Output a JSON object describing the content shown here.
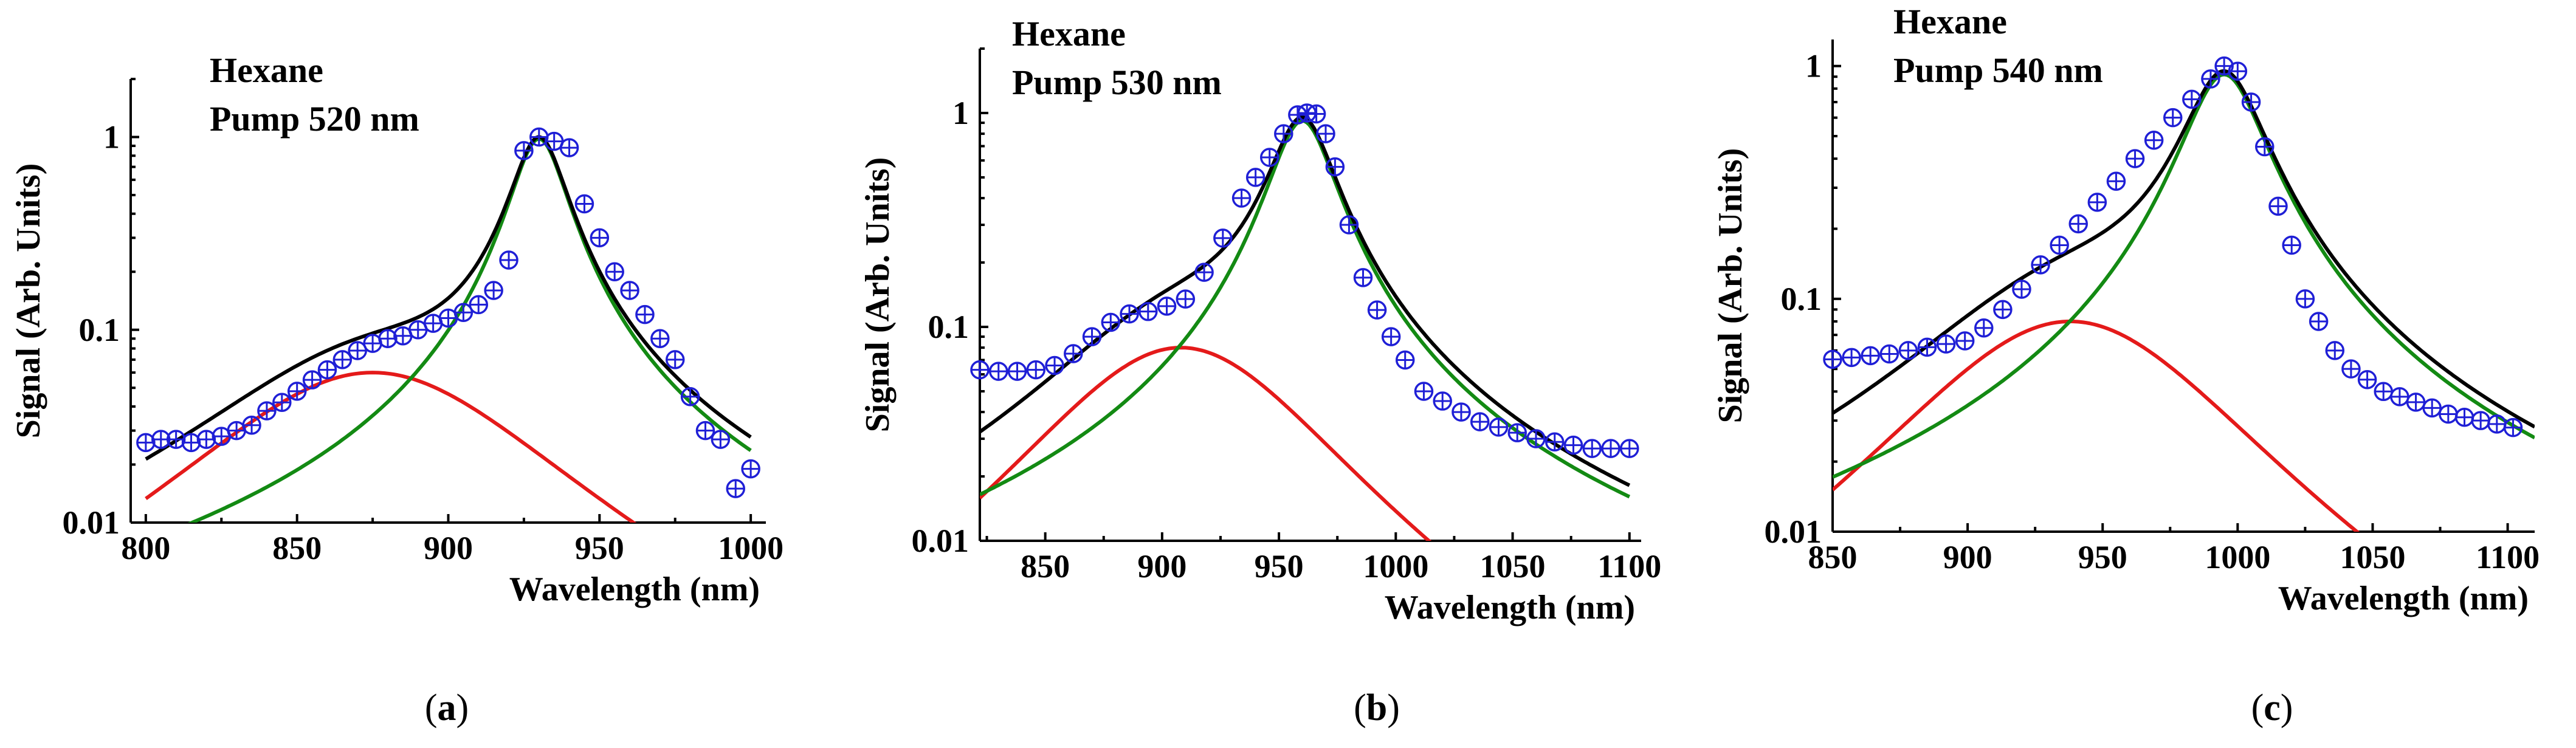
{
  "colors": {
    "data": "#1f1fd6",
    "total_fit": "#000000",
    "red_fit": "#e41a1a",
    "green_fit": "#138a13"
  },
  "chart_data": [
    {
      "type": "scatter",
      "panel_label": "a",
      "annotation": [
        "Hexane",
        "Pump 520 nm"
      ],
      "xlabel": "Wavelength (nm)",
      "ylabel": "Signal (Arb. Units)",
      "xlim": [
        795,
        1005
      ],
      "ylim": [
        0.01,
        2.0
      ],
      "yscale": "log",
      "xticks": [
        800,
        850,
        900,
        950,
        1000
      ],
      "yticks": [
        0.01,
        0.1,
        1
      ],
      "ytick_labels": [
        "0.01",
        "0.1",
        "1"
      ],
      "fit_range": [
        800,
        1000
      ],
      "fit_components": [
        {
          "name": "red",
          "center": 875,
          "amplitude": 0.06,
          "gamma": 60,
          "power": 1.6
        },
        {
          "name": "green",
          "center": 930,
          "amplitude": 0.98,
          "gamma": 8.5,
          "power": 0.88
        }
      ],
      "data": {
        "x": [
          800,
          805,
          810,
          815,
          820,
          825,
          830,
          835,
          840,
          845,
          850,
          855,
          860,
          865,
          870,
          875,
          880,
          885,
          890,
          895,
          900,
          905,
          910,
          915,
          920,
          925,
          930,
          935,
          940,
          945,
          950,
          955,
          960,
          965,
          970,
          975,
          980,
          985,
          990,
          995,
          1000
        ],
        "y": [
          0.026,
          0.027,
          0.027,
          0.026,
          0.027,
          0.028,
          0.03,
          0.032,
          0.038,
          0.042,
          0.048,
          0.055,
          0.062,
          0.07,
          0.078,
          0.085,
          0.09,
          0.093,
          0.1,
          0.108,
          0.115,
          0.123,
          0.135,
          0.16,
          0.23,
          0.85,
          1.0,
          0.95,
          0.88,
          0.45,
          0.3,
          0.2,
          0.16,
          0.12,
          0.09,
          0.07,
          0.045,
          0.03,
          0.027,
          0.015,
          0.019
        ]
      }
    },
    {
      "type": "scatter",
      "panel_label": "b",
      "annotation": [
        "Hexane",
        "Pump 530 nm"
      ],
      "xlabel": "Wavelength (nm)",
      "ylabel": "Signal (Arb. Units)",
      "xlim": [
        822,
        1105
      ],
      "ylim": [
        0.01,
        2.0
      ],
      "yscale": "log",
      "xticks": [
        850,
        900,
        950,
        1000,
        1050,
        1100
      ],
      "yticks": [
        0.01,
        0.1,
        1
      ],
      "ytick_labels": [
        "0.01",
        "0.1",
        "1"
      ],
      "fit_range": [
        822,
        1100
      ],
      "fit_components": [
        {
          "name": "red",
          "center": 908,
          "amplitude": 0.08,
          "gamma": 65,
          "power": 1.6
        },
        {
          "name": "green",
          "center": 960,
          "amplitude": 0.92,
          "gamma": 13,
          "power": 0.85
        }
      ],
      "data": {
        "x": [
          822,
          830,
          838,
          846,
          854,
          862,
          870,
          878,
          886,
          894,
          902,
          910,
          918,
          926,
          934,
          940,
          946,
          952,
          958,
          962,
          966,
          970,
          974,
          980,
          986,
          992,
          998,
          1004,
          1012,
          1020,
          1028,
          1036,
          1044,
          1052,
          1060,
          1068,
          1076,
          1084,
          1092,
          1100
        ],
        "y": [
          0.063,
          0.062,
          0.062,
          0.063,
          0.066,
          0.075,
          0.09,
          0.105,
          0.115,
          0.118,
          0.125,
          0.135,
          0.18,
          0.26,
          0.4,
          0.5,
          0.62,
          0.8,
          0.98,
          1.0,
          0.99,
          0.8,
          0.56,
          0.3,
          0.17,
          0.12,
          0.09,
          0.07,
          0.05,
          0.045,
          0.04,
          0.036,
          0.034,
          0.032,
          0.03,
          0.029,
          0.028,
          0.027,
          0.027,
          0.027
        ]
      }
    },
    {
      "type": "scatter",
      "panel_label": "c",
      "annotation": [
        "Hexane",
        "Pump 540 nm"
      ],
      "xlabel": "Wavelength (nm)",
      "ylabel": "Signal (Arb. Units)",
      "xlim": [
        850,
        1110
      ],
      "ylim": [
        0.01,
        1.3
      ],
      "yscale": "log",
      "xticks": [
        850,
        900,
        950,
        1000,
        1050,
        1100
      ],
      "yticks": [
        0.01,
        0.1,
        1
      ],
      "ytick_labels": [
        "0.01",
        "0.1",
        "1"
      ],
      "fit_range": [
        850,
        1110
      ],
      "fit_components": [
        {
          "name": "red",
          "center": 938,
          "amplitude": 0.08,
          "gamma": 65,
          "power": 1.6
        },
        {
          "name": "green",
          "center": 995,
          "amplitude": 0.92,
          "gamma": 14,
          "power": 0.85
        }
      ],
      "data": {
        "x": [
          850,
          857,
          864,
          871,
          878,
          885,
          892,
          899,
          906,
          913,
          920,
          927,
          934,
          941,
          948,
          955,
          962,
          969,
          976,
          983,
          990,
          995,
          1000,
          1005,
          1010,
          1015,
          1020,
          1025,
          1030,
          1036,
          1042,
          1048,
          1054,
          1060,
          1066,
          1072,
          1078,
          1084,
          1090,
          1096,
          1102
        ],
        "y": [
          0.055,
          0.056,
          0.057,
          0.058,
          0.06,
          0.062,
          0.064,
          0.066,
          0.075,
          0.09,
          0.11,
          0.14,
          0.17,
          0.21,
          0.26,
          0.32,
          0.4,
          0.48,
          0.6,
          0.72,
          0.88,
          1.0,
          0.95,
          0.7,
          0.45,
          0.25,
          0.17,
          0.1,
          0.08,
          0.06,
          0.05,
          0.045,
          0.04,
          0.038,
          0.036,
          0.034,
          0.032,
          0.031,
          0.03,
          0.029,
          0.028
        ]
      }
    }
  ]
}
